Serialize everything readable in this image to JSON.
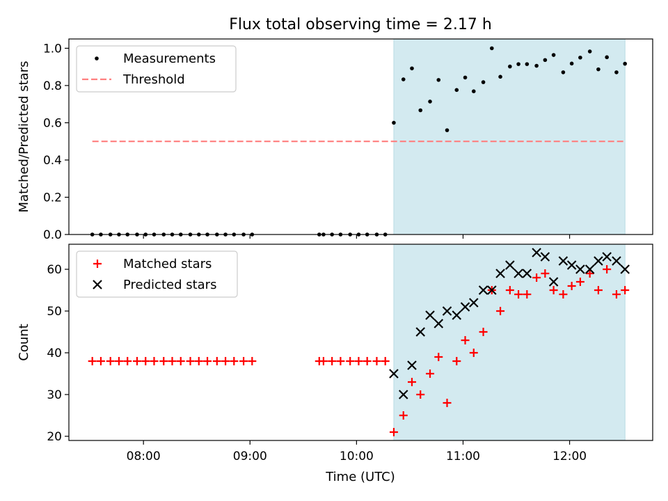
{
  "title": "Flux total observing time = 2.17 h",
  "colors": {
    "shade": "#d3eaf0",
    "shade_edge": "#b9dbe3",
    "threshold": "#ff7f7f",
    "measure": "#000000",
    "matched": "#ff0000",
    "predicted": "#000000"
  },
  "chart_data": [
    {
      "type": "scatter",
      "panel": "top",
      "ylabel": "Matched/Predicted stars",
      "xlabel": "",
      "ylim": [
        0.0,
        1.05
      ],
      "yticks": [
        0.0,
        0.2,
        0.4,
        0.6,
        0.8,
        1.0
      ],
      "ytick_labels": [
        "0.0",
        "0.2",
        "0.4",
        "0.6",
        "0.8",
        "1.0"
      ],
      "xlim": [
        7.3,
        12.78
      ],
      "shaded_range": [
        10.35,
        12.52
      ],
      "legend": [
        "Measurements",
        "Threshold"
      ],
      "legend_position": "top-left",
      "threshold": {
        "y": 0.5,
        "x_range": [
          7.52,
          12.52
        ]
      },
      "series": [
        {
          "name": "Measurements",
          "x": [
            7.52,
            7.6,
            7.69,
            7.77,
            7.85,
            7.94,
            8.02,
            8.1,
            8.19,
            8.27,
            8.35,
            8.44,
            8.52,
            8.6,
            8.69,
            8.77,
            8.85,
            8.94,
            9.02,
            9.65,
            9.69,
            9.77,
            9.85,
            9.94,
            10.02,
            10.1,
            10.19,
            10.27,
            10.35,
            10.44,
            10.52,
            10.6,
            10.69,
            10.77,
            10.85,
            10.94,
            11.02,
            11.1,
            11.19,
            11.27,
            11.35,
            11.44,
            11.52,
            11.6,
            11.69,
            11.77,
            11.85,
            11.94,
            12.02,
            12.1,
            12.19,
            12.27,
            12.35,
            12.44,
            12.52
          ],
          "y": [
            0,
            0,
            0,
            0,
            0,
            0,
            0,
            0,
            0,
            0,
            0,
            0,
            0,
            0,
            0,
            0,
            0,
            0,
            0,
            0,
            0,
            0,
            0,
            0,
            0,
            0,
            0,
            0,
            0.6,
            0.833,
            0.892,
            0.667,
            0.714,
            0.83,
            0.56,
            0.776,
            0.843,
            0.769,
            0.818,
            1.0,
            0.847,
            0.902,
            0.915,
            0.915,
            0.906,
            0.937,
            0.964,
            0.871,
            0.918,
            0.95,
            0.983,
            0.887,
            0.952,
            0.871,
            0.917
          ]
        }
      ]
    },
    {
      "type": "scatter",
      "panel": "bottom",
      "ylabel": "Count",
      "xlabel": "Time (UTC)",
      "ylim": [
        19,
        66
      ],
      "yticks": [
        20,
        30,
        40,
        50,
        60
      ],
      "ytick_labels": [
        "20",
        "30",
        "40",
        "50",
        "60"
      ],
      "xlim": [
        7.3,
        12.78
      ],
      "xticks": [
        8,
        9,
        10,
        11,
        12
      ],
      "xtick_labels": [
        "08:00",
        "09:00",
        "10:00",
        "11:00",
        "12:00"
      ],
      "shaded_range": [
        10.35,
        12.52
      ],
      "legend": [
        "Matched stars",
        "Predicted stars"
      ],
      "legend_position": "top-left",
      "series": [
        {
          "name": "Matched stars",
          "marker": "+",
          "x": [
            7.52,
            7.6,
            7.69,
            7.77,
            7.85,
            7.94,
            8.02,
            8.1,
            8.19,
            8.27,
            8.35,
            8.44,
            8.52,
            8.6,
            8.69,
            8.77,
            8.85,
            8.94,
            9.02,
            9.65,
            9.69,
            9.77,
            9.85,
            9.94,
            10.02,
            10.1,
            10.19,
            10.27,
            10.35,
            10.44,
            10.52,
            10.6,
            10.69,
            10.77,
            10.85,
            10.94,
            11.02,
            11.1,
            11.19,
            11.27,
            11.35,
            11.44,
            11.52,
            11.6,
            11.69,
            11.77,
            11.85,
            11.94,
            12.02,
            12.1,
            12.19,
            12.27,
            12.35,
            12.44,
            12.52
          ],
          "y": [
            38,
            38,
            38,
            38,
            38,
            38,
            38,
            38,
            38,
            38,
            38,
            38,
            38,
            38,
            38,
            38,
            38,
            38,
            38,
            38,
            38,
            38,
            38,
            38,
            38,
            38,
            38,
            38,
            21,
            25,
            33,
            30,
            35,
            39,
            28,
            38,
            43,
            40,
            45,
            55,
            50,
            55,
            54,
            54,
            58,
            59,
            55,
            54,
            56,
            57,
            59,
            55,
            60,
            54,
            55
          ]
        },
        {
          "name": "Predicted stars",
          "marker": "x",
          "x": [
            10.35,
            10.44,
            10.52,
            10.6,
            10.69,
            10.77,
            10.85,
            10.94,
            11.02,
            11.1,
            11.19,
            11.27,
            11.35,
            11.44,
            11.52,
            11.6,
            11.69,
            11.77,
            11.85,
            11.94,
            12.02,
            12.1,
            12.19,
            12.27,
            12.35,
            12.44,
            12.52
          ],
          "y": [
            35,
            30,
            37,
            45,
            49,
            47,
            50,
            49,
            51,
            52,
            55,
            55,
            59,
            61,
            59,
            59,
            64,
            63,
            57,
            62,
            61,
            60,
            60,
            62,
            63,
            62,
            60
          ]
        }
      ]
    }
  ]
}
